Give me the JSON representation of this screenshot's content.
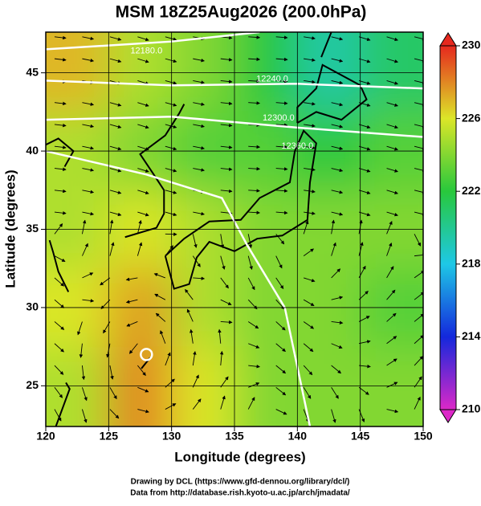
{
  "chart_data": {
    "type": "heatmap",
    "title": "MSM 18Z25Aug2026 (200.0hPa)",
    "x_label": "Longitude (degrees)",
    "y_label": "Latitude  (degrees)",
    "xlim": [
      120,
      150
    ],
    "ylim": [
      22.4,
      47.6
    ],
    "xticks": [
      120,
      125,
      130,
      135,
      140,
      145,
      150
    ],
    "yticks": [
      25,
      30,
      35,
      40,
      45
    ],
    "grid": true,
    "x": [
      122.5,
      127.5,
      132.5,
      137.5,
      142.5,
      147.5
    ],
    "y": [
      45,
      40,
      35,
      30,
      25
    ],
    "z": [
      [
        227,
        225,
        224,
        222,
        219.5,
        221
      ],
      [
        225,
        224,
        223,
        223,
        222,
        223
      ],
      [
        225,
        226,
        225,
        224,
        224,
        224
      ],
      [
        226,
        227.5,
        225,
        224,
        224,
        223
      ],
      [
        225,
        228,
        226,
        224,
        224,
        224
      ]
    ],
    "clim": [
      210,
      230
    ],
    "colorbar_ticks": [
      210,
      214,
      218,
      222,
      226,
      230
    ],
    "contour_labels": [
      "12180.0",
      "12240.0",
      "12300.0",
      "12360.0"
    ],
    "footer": [
      "Drawing by DCL (https://www.gfd-dennou.org/library/dcl/)",
      "Data from http://database.rish.kyoto-u.ac.jp/arch/jmadata/"
    ]
  }
}
